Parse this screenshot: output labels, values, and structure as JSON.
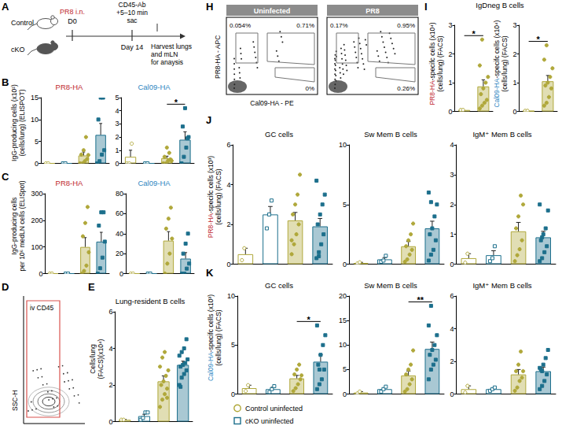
{
  "antigen_colors": {
    "PR8-HA": "#c0272d",
    "Cal09-HA": "#2e86c1"
  },
  "schematic": {
    "panel": "A",
    "groups": [
      "Control",
      "cKO"
    ],
    "infection": [
      "PR8 i.n.",
      "D0"
    ],
    "day": "Day 14",
    "sampling": [
      "CD45-Ab",
      "+5–10 min",
      "sac"
    ],
    "harvest": [
      "Harvest lungs",
      "and mLN",
      "for anaysis"
    ]
  },
  "flow_D": {
    "panel": "D",
    "gate": "iv CD45",
    "y_label": "SSC-H"
  },
  "flow_H": {
    "panel": "H",
    "y_label": "PR8-HA - APC",
    "x_label": "Cal09-HA - PE",
    "plots": [
      {
        "title": "Uninfected",
        "gates": [
          "0.054%",
          "0.71%",
          "0%"
        ]
      },
      {
        "title": "PR8",
        "gates": [
          "0.17%",
          "0.95%",
          "0.26%"
        ]
      }
    ]
  },
  "chart_data": [
    {
      "type": "bar",
      "panel": "B",
      "title": "PR8-HA",
      "ylabel": [
        [
          "IgG-producing cells (x10²)"
        ],
        [
          "(cells/lung) (ELISPOT)"
        ]
      ],
      "categories": [
        null,
        null,
        null,
        null
      ],
      "values": [
        0,
        0,
        1.8,
        6.5
      ],
      "errors": [
        0,
        0,
        0.8,
        2.6
      ],
      "points": [
        [
          0,
          0
        ],
        [
          0,
          0
        ],
        [
          0,
          0,
          0.5,
          1,
          2,
          3,
          6,
          1.9
        ],
        [
          0,
          0.5,
          2,
          3,
          10,
          15,
          15
        ]
      ],
      "colors": [
        "#b0a83a",
        "#1c6f8c",
        "#b0a83a",
        "#1c6f8c"
      ],
      "markers": [
        "emptyCircle",
        "emptyRect",
        "circle",
        "rect"
      ],
      "ylim": [
        0,
        15
      ],
      "yticks": [
        0,
        5,
        10,
        15
      ],
      "grid": false,
      "tick_labels": "y"
    },
    {
      "type": "bar",
      "title": "Cal09-HA",
      "categories": [
        null,
        null,
        null,
        null
      ],
      "values": [
        0.5,
        0,
        0.4,
        1.8
      ],
      "errors": [
        0.5,
        0,
        0.15,
        0.6
      ],
      "points": [
        [
          0,
          0,
          1.5
        ],
        [
          0,
          0
        ],
        [
          0,
          0,
          0.2,
          0.3,
          0.5,
          1.2,
          0.8,
          0.2
        ],
        [
          0,
          0.5,
          1.2,
          2,
          2.8,
          4.2,
          1.9
        ]
      ],
      "colors": [
        "#b0a83a",
        "#1c6f8c",
        "#b0a83a",
        "#1c6f8c"
      ],
      "markers": [
        "emptyCircle",
        "emptyRect",
        "circle",
        "rect"
      ],
      "ylim": [
        0,
        5
      ],
      "yticks": [
        0,
        1,
        2,
        3,
        4,
        5
      ],
      "annotations": [
        {
          "text": "*",
          "between": [
            2,
            3
          ]
        }
      ],
      "grid": false,
      "tick_labels": "y"
    },
    {
      "type": "bar",
      "panel": "C",
      "title": "PR8-HA",
      "ylabel": [
        [
          "IgG-producing cells"
        ],
        [
          "per 10⁶ medLN cells (ELISpot)"
        ]
      ],
      "categories": [
        null,
        null,
        null,
        null
      ],
      "values": [
        0,
        0,
        100,
        120
      ],
      "errors": [
        0,
        0,
        35,
        35
      ],
      "points": [
        [
          0,
          0
        ],
        [
          0,
          0
        ],
        [
          0,
          10,
          30,
          80,
          140,
          190,
          250
        ],
        [
          0,
          20,
          60,
          120,
          180,
          230,
          230
        ]
      ],
      "colors": [
        "#b0a83a",
        "#1c6f8c",
        "#b0a83a",
        "#1c6f8c"
      ],
      "markers": [
        "emptyCircle",
        "emptyRect",
        "circle",
        "rect"
      ],
      "ylim": [
        0,
        300
      ],
      "yticks": [
        0,
        100,
        200,
        300
      ],
      "grid": false,
      "tick_labels": "y"
    },
    {
      "type": "bar",
      "title": "Cal09-HA",
      "categories": [
        null,
        null,
        null,
        null
      ],
      "values": [
        0,
        0,
        33,
        15
      ],
      "errors": [
        0,
        0,
        9,
        6
      ],
      "points": [
        [
          0,
          0
        ],
        [
          0,
          0
        ],
        [
          0,
          10,
          20,
          35,
          45,
          55,
          66
        ],
        [
          0,
          0,
          5,
          10,
          20,
          30,
          40
        ]
      ],
      "colors": [
        "#b0a83a",
        "#1c6f8c",
        "#b0a83a",
        "#1c6f8c"
      ],
      "markers": [
        "emptyCircle",
        "emptyRect",
        "circle",
        "rect"
      ],
      "ylim": [
        0,
        80
      ],
      "yticks": [
        0,
        20,
        40,
        60,
        80
      ],
      "grid": false,
      "tick_labels": "y"
    },
    {
      "type": "bar",
      "panel": "E",
      "title": "Lung-resident B cells",
      "ylabel": [
        [
          "Cells/lung"
        ],
        [
          "(FACS)(x10⁴)"
        ]
      ],
      "categories": [
        null,
        null,
        null,
        null
      ],
      "values": [
        0.1,
        0.3,
        2.2,
        3.1
      ],
      "errors": [
        0.02,
        0.1,
        0.3,
        0.2
      ],
      "points": [
        [
          0.1,
          0.1
        ],
        [
          0.1,
          0.2,
          0.5,
          0.5
        ],
        [
          0.8,
          1.2,
          1.5,
          1.8,
          2.0,
          2.2,
          2.5,
          2.8,
          3.0,
          3.5,
          3.8,
          1.3
        ],
        [
          2.0,
          2.4,
          2.6,
          2.8,
          3.0,
          3.1,
          3.2,
          3.4,
          3.6,
          3.8,
          4.0,
          4.5,
          1.9
        ]
      ],
      "colors": [
        "#b0a83a",
        "#1c6f8c",
        "#b0a83a",
        "#1c6f8c"
      ],
      "markers": [
        "emptyCircle",
        "emptyRect",
        "circle",
        "rect"
      ],
      "ylim": [
        0,
        6
      ],
      "yticks": [
        0,
        2,
        4,
        6
      ],
      "grid": false,
      "tick_labels": "y"
    },
    {
      "type": "bar",
      "panel": "I",
      "group_title": "IgDneg B cells",
      "ylabel": [
        [
          "PR8-HA",
          "-specifc cells (x10⁴)"
        ],
        [
          "(cells/lung) (FACS)"
        ]
      ],
      "categories": [
        null,
        null
      ],
      "values": [
        0.05,
        0.87
      ],
      "errors": [
        0,
        0.23
      ],
      "points": [
        [
          0.05,
          0.05
        ],
        [
          0.1,
          0.2,
          0.3,
          0.4,
          0.6,
          0.8,
          1.0,
          1.2,
          1.6,
          2.5
        ]
      ],
      "colors": [
        "#b0a83a",
        "#b0a83a"
      ],
      "markers": [
        "emptyCircle",
        "circle"
      ],
      "ylim": [
        0,
        3
      ],
      "yticks": [
        0,
        1,
        2,
        3
      ],
      "annotations": [
        {
          "text": "*",
          "between": [
            0,
            1
          ]
        }
      ],
      "grid": false,
      "tick_labels": "y"
    },
    {
      "type": "bar",
      "ylabel": [
        [
          "Cal09-HA",
          "-specifc cells (x10⁴)"
        ],
        [
          "(cells/lung) (FACS)"
        ]
      ],
      "categories": [
        null,
        null
      ],
      "values": [
        0.02,
        1.05
      ],
      "errors": [
        0,
        0.2
      ],
      "points": [
        [
          0.02,
          0.02
        ],
        [
          0.2,
          0.3,
          0.5,
          0.8,
          0.9,
          1.0,
          1.2,
          1.5,
          1.8,
          2.3
        ]
      ],
      "colors": [
        "#b0a83a",
        "#b0a83a"
      ],
      "markers": [
        "emptyCircle",
        "circle"
      ],
      "ylim": [
        0,
        3
      ],
      "yticks": [
        0,
        1,
        2,
        3
      ],
      "annotations": [
        {
          "text": "*",
          "between": [
            0,
            1
          ]
        }
      ],
      "grid": false,
      "tick_labels": "y"
    },
    {
      "type": "bar",
      "panel": "J",
      "title": "GC cells",
      "ylabel": [
        [
          "PR8-HA",
          "-specifc cells (x10³)"
        ],
        [
          "(cells/lung) (FACS)"
        ]
      ],
      "categories": [
        null,
        null,
        null,
        null
      ],
      "values": [
        0.5,
        2.5,
        2.2,
        1.9
      ],
      "errors": [
        0.3,
        0.4,
        0.4,
        0.4
      ],
      "points": [
        [
          0.2,
          0.8
        ],
        [
          1.8,
          2.5,
          3.2
        ],
        [
          0.5,
          1,
          1.5,
          2,
          2.5,
          3,
          3.5,
          4.5,
          1.2
        ],
        [
          0.3,
          0.6,
          1,
          1.5,
          2,
          2.5,
          3,
          3.5,
          4.2,
          0.4
        ]
      ],
      "colors": [
        "#b0a83a",
        "#1c6f8c",
        "#b0a83a",
        "#1c6f8c"
      ],
      "markers": [
        "emptyCircle",
        "emptyRect",
        "circle",
        "rect"
      ],
      "ylim": [
        0,
        6
      ],
      "yticks": [
        0,
        2,
        4,
        6
      ],
      "grid": false,
      "tick_labels": "y"
    },
    {
      "type": "bar",
      "title": "Sw Mem B cells",
      "categories": [
        null,
        null,
        null,
        null
      ],
      "values": [
        0.1,
        0.4,
        1.5,
        3.0
      ],
      "errors": [
        0.05,
        0.15,
        0.4,
        0.6
      ],
      "points": [
        [
          0.05,
          0.15
        ],
        [
          0.2,
          0.3,
          0.7
        ],
        [
          0.2,
          0.4,
          0.8,
          1.2,
          1.5,
          2,
          2.5,
          3.4
        ],
        [
          0.3,
          0.8,
          1.2,
          2,
          2.5,
          3,
          4,
          5,
          6,
          5.2
        ]
      ],
      "colors": [
        "#b0a83a",
        "#1c6f8c",
        "#b0a83a",
        "#1c6f8c"
      ],
      "markers": [
        "emptyCircle",
        "emptyRect",
        "circle",
        "rect"
      ],
      "ylim": [
        0,
        10
      ],
      "yticks": [
        0,
        5,
        10
      ],
      "grid": false,
      "tick_labels": "y"
    },
    {
      "type": "bar",
      "title": "IgM⁺ Mem B cells",
      "categories": [
        null,
        null,
        null,
        null
      ],
      "values": [
        0.2,
        0.3,
        1.1,
        0.9
      ],
      "errors": [
        0.15,
        0.15,
        0.3,
        0.2
      ],
      "points": [
        [
          0.05,
          0.35
        ],
        [
          0.1,
          0.2,
          0.6
        ],
        [
          0.1,
          0.3,
          0.5,
          0.8,
          1.2,
          1.6,
          2.3,
          2.0
        ],
        [
          0.1,
          0.2,
          0.4,
          0.6,
          0.8,
          1.0,
          1.2,
          1.8,
          2.0,
          0.9
        ]
      ],
      "colors": [
        "#b0a83a",
        "#1c6f8c",
        "#b0a83a",
        "#1c6f8c"
      ],
      "markers": [
        "emptyCircle",
        "emptyRect",
        "circle",
        "rect"
      ],
      "ylim": [
        0,
        4
      ],
      "yticks": [
        0,
        1,
        2,
        3,
        4
      ],
      "grid": false,
      "tick_labels": "y"
    },
    {
      "type": "bar",
      "panel": "K",
      "title": "GC cells",
      "ylabel": [
        [
          "Cal09-HA",
          "-specifc cells (x10³)"
        ],
        [
          "(cells/lung) (FACS)"
        ]
      ],
      "categories": [
        null,
        null,
        null,
        null
      ],
      "values": [
        0.6,
        0.5,
        1.6,
        3.3
      ],
      "errors": [
        0.3,
        0.2,
        0.3,
        0.7
      ],
      "points": [
        [
          0.3,
          0.9
        ],
        [
          0.2,
          0.5,
          0.8
        ],
        [
          0.3,
          0.6,
          1,
          1.5,
          2,
          2.5,
          3,
          1.9
        ],
        [
          0.5,
          1,
          1.5,
          2.5,
          3,
          4,
          5,
          6,
          7,
          2.5
        ]
      ],
      "colors": [
        "#b0a83a",
        "#1c6f8c",
        "#b0a83a",
        "#1c6f8c"
      ],
      "markers": [
        "emptyCircle",
        "emptyRect",
        "circle",
        "rect"
      ],
      "ylim": [
        0,
        10
      ],
      "yticks": [
        0,
        5,
        10
      ],
      "annotations": [
        {
          "text": "*",
          "between": [
            2,
            3
          ]
        }
      ],
      "grid": false,
      "tick_labels": "y"
    },
    {
      "type": "bar",
      "title": "Sw Mem B cells",
      "categories": [
        null,
        null,
        null,
        null
      ],
      "values": [
        0.3,
        1.0,
        3.8,
        9.2
      ],
      "errors": [
        0.2,
        0.3,
        0.9,
        1.4
      ],
      "points": [
        [
          0.1,
          0.5
        ],
        [
          0.5,
          1.0,
          1.5
        ],
        [
          0.5,
          1,
          2,
          3,
          4,
          5,
          6,
          8.9
        ],
        [
          3,
          5,
          6,
          7,
          8,
          9,
          10,
          12,
          14,
          18
        ]
      ],
      "colors": [
        "#b0a83a",
        "#1c6f8c",
        "#b0a83a",
        "#1c6f8c"
      ],
      "markers": [
        "emptyCircle",
        "emptyRect",
        "circle",
        "rect"
      ],
      "ylim": [
        0,
        20
      ],
      "yticks": [
        0,
        5,
        10,
        15,
        20
      ],
      "annotations": [
        {
          "text": "**",
          "between": [
            2,
            3
          ]
        }
      ],
      "grid": false,
      "tick_labels": "y"
    },
    {
      "type": "bar",
      "title": "IgM⁺ Mem B cells",
      "categories": [
        null,
        null,
        null,
        null
      ],
      "values": [
        0.3,
        0.3,
        1.2,
        1.4
      ],
      "errors": [
        0.2,
        0.06,
        0.3,
        0.25
      ],
      "points": [
        [
          0.1,
          0.5
        ],
        [
          0.2,
          0.3,
          0.4
        ],
        [
          0.2,
          0.4,
          0.8,
          1,
          1.4,
          1.8,
          2.6,
          1.4
        ],
        [
          0.3,
          0.5,
          0.8,
          1.2,
          1.5,
          1.8,
          2.2,
          2.7,
          1.6,
          1.4
        ]
      ],
      "colors": [
        "#b0a83a",
        "#1c6f8c",
        "#b0a83a",
        "#1c6f8c"
      ],
      "markers": [
        "emptyCircle",
        "emptyRect",
        "circle",
        "rect"
      ],
      "ylim": [
        0,
        6
      ],
      "yticks": [
        0,
        2,
        4,
        6
      ],
      "grid": false,
      "tick_labels": "y"
    }
  ],
  "legend_items": [
    {
      "name": "Control uninfected",
      "color": "#b0a83a",
      "marker": "emptyCircle"
    },
    {
      "name": "cKO uninfected",
      "color": "#1c6f8c",
      "marker": "emptyRect"
    }
  ]
}
